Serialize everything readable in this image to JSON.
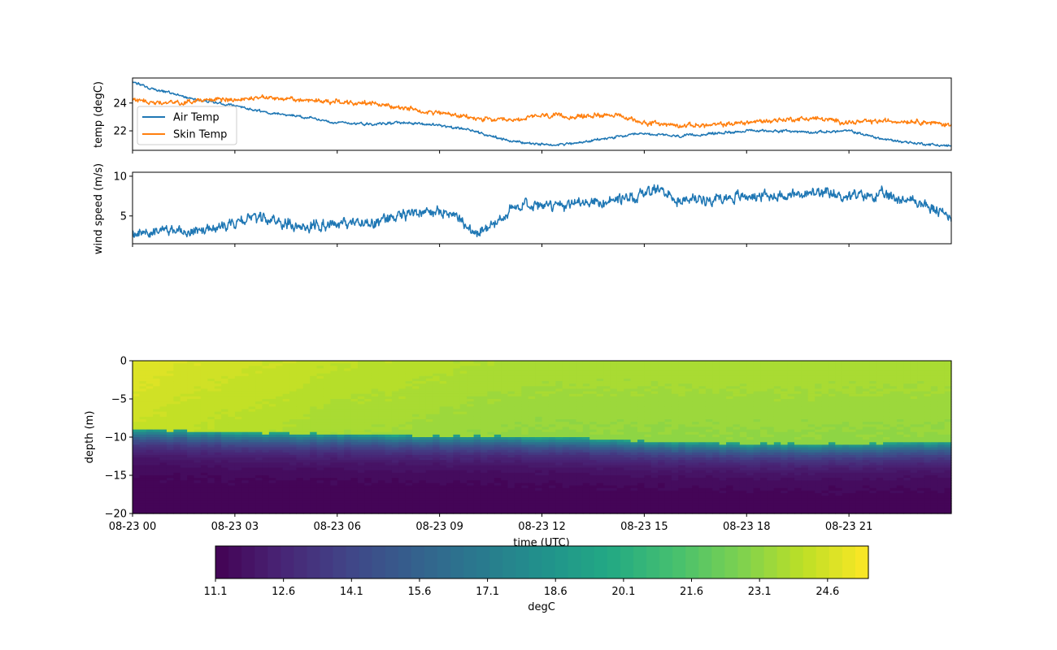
{
  "chart_data": [
    {
      "type": "line",
      "ylabel": "temp (degC)",
      "yticks": [
        22,
        24
      ],
      "ylim": [
        20.6,
        25.8
      ],
      "xlim_hours": [
        0,
        24
      ],
      "legend_placement": "center-left",
      "grid": false,
      "series": [
        {
          "name": "Air Temp",
          "color": "#1f77b4",
          "x_hours": [
            0,
            0.5,
            1,
            1.5,
            2,
            3,
            4,
            5,
            6,
            7,
            8,
            9,
            10,
            11,
            12,
            13,
            14,
            15,
            16,
            17,
            18,
            19,
            20,
            21,
            22,
            23,
            24
          ],
          "values": [
            25.5,
            25.1,
            24.8,
            24.5,
            24.2,
            23.8,
            23.3,
            23.0,
            22.6,
            22.5,
            22.6,
            22.4,
            22.0,
            21.3,
            21.0,
            21.1,
            21.5,
            21.8,
            21.6,
            21.8,
            22.0,
            22.0,
            21.9,
            22.0,
            21.4,
            21.1,
            20.9
          ]
        },
        {
          "name": "Skin Temp",
          "color": "#ff7f0e",
          "x_hours": [
            0,
            1,
            2,
            3,
            4,
            5,
            6,
            7,
            8,
            9,
            10,
            11,
            12,
            13,
            14,
            15,
            16,
            17,
            18,
            19,
            20,
            21,
            22,
            23,
            24
          ],
          "values": [
            24.2,
            24.0,
            24.2,
            24.3,
            24.4,
            24.2,
            24.1,
            24.0,
            23.6,
            23.3,
            22.9,
            22.7,
            23.1,
            23.0,
            23.2,
            22.6,
            22.4,
            22.4,
            22.6,
            22.8,
            22.9,
            22.6,
            22.7,
            22.7,
            22.4
          ]
        }
      ]
    },
    {
      "type": "line",
      "ylabel": "wind speed (m/s)",
      "yticks": [
        5,
        10
      ],
      "ylim": [
        1.5,
        10.5
      ],
      "xlim_hours": [
        0,
        24
      ],
      "grid": false,
      "series": [
        {
          "color": "#1f77b4",
          "x_hours": [
            0,
            1,
            2,
            3,
            3.5,
            4,
            5,
            6,
            7,
            7.5,
            8,
            8.5,
            9,
            9.5,
            10,
            10.5,
            11,
            11.5,
            12,
            13,
            14,
            15,
            15.5,
            16,
            17,
            18,
            19,
            20,
            21,
            22,
            23,
            23.5,
            24
          ],
          "values": [
            2.8,
            3.2,
            3.3,
            4.2,
            4.8,
            4.4,
            3.7,
            4.0,
            4.1,
            4.5,
            5.2,
            5.6,
            5.4,
            5.1,
            3.0,
            3.8,
            5.6,
            6.6,
            6.3,
            6.5,
            6.8,
            7.8,
            8.2,
            7.0,
            7.2,
            7.5,
            7.6,
            7.8,
            7.5,
            7.6,
            6.8,
            5.8,
            4.8
          ]
        }
      ]
    },
    {
      "type": "heatmap",
      "xlabel": "time (UTC)",
      "ylabel": "depth (m)",
      "yticks": [
        0,
        -5,
        -10,
        -15,
        -20
      ],
      "ylim": [
        -20,
        0
      ],
      "xlim_hours": [
        0,
        24
      ],
      "xtick_hours": [
        0,
        3,
        6,
        9,
        12,
        15,
        18,
        21
      ],
      "xtick_labels": [
        "08-23 00",
        "08-23 03",
        "08-23 06",
        "08-23 09",
        "08-23 12",
        "08-23 15",
        "08-23 18",
        "08-23 21"
      ],
      "mixed_layer_depth": {
        "x_hours": [
          0,
          3,
          6,
          9,
          12,
          15,
          18,
          21,
          24
        ],
        "depth_m": [
          -9.0,
          -9.4,
          -9.6,
          -9.8,
          -10.0,
          -10.5,
          -10.9,
          -10.9,
          -10.6
        ]
      },
      "surface_temp_degC": {
        "x_hours": [
          0,
          2,
          4,
          6,
          8,
          10,
          12,
          24
        ],
        "values": [
          24.9,
          24.6,
          24.4,
          24.1,
          24.0,
          23.8,
          23.7,
          23.7
        ]
      },
      "deep_temp_degC": 11.2,
      "colorbar": {
        "label": "degC",
        "min": 11.1,
        "max": 25.5,
        "levels": 50,
        "ticks": [
          11.1,
          12.6,
          14.1,
          15.6,
          17.1,
          18.6,
          20.1,
          21.6,
          23.1,
          24.6
        ],
        "colormap": [
          "#440154",
          "#482475",
          "#414487",
          "#355f8d",
          "#2a788e",
          "#21918c",
          "#22a884",
          "#44bf70",
          "#7ad151",
          "#bddf26",
          "#fde725"
        ]
      }
    }
  ]
}
